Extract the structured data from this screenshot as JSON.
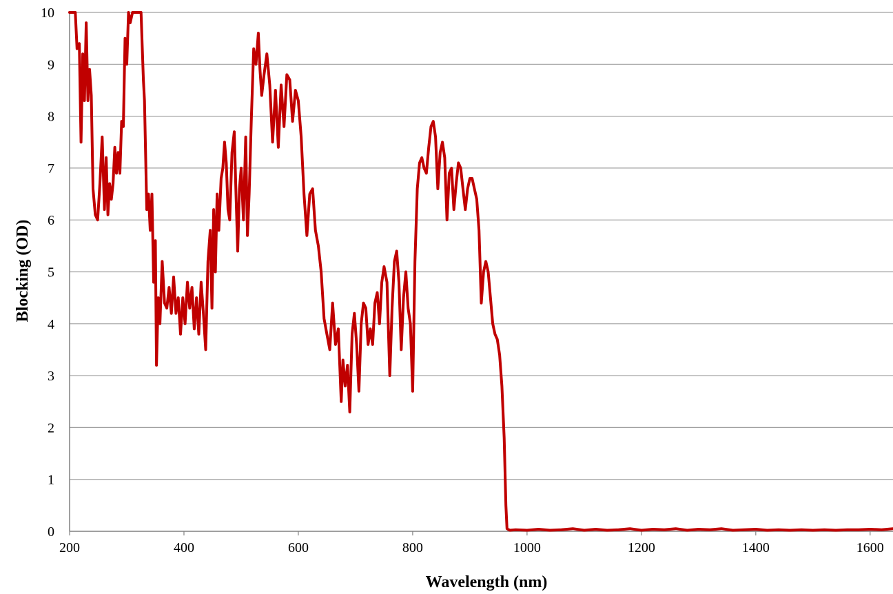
{
  "chart_data": {
    "type": "line",
    "title": "",
    "xlabel": "Wavelength (nm)",
    "ylabel": "Blocking (OD)",
    "xlim": [
      200,
      1640
    ],
    "ylim": [
      0,
      10
    ],
    "x_ticks": [
      "200",
      "400",
      "600",
      "800",
      "1000",
      "1200",
      "1400",
      "1600"
    ],
    "y_ticks": [
      "0",
      "1",
      "2",
      "3",
      "4",
      "5",
      "6",
      "7",
      "8",
      "9",
      "10"
    ],
    "grid": {
      "horizontal": true,
      "vertical": false
    },
    "legend": "none",
    "colors": {
      "series": "#c00000",
      "grid": "#a0a0a0",
      "axis": "#808080"
    },
    "series": [
      {
        "values_xy": [
          [
            200,
            10
          ],
          [
            210,
            10
          ],
          [
            213,
            9.3
          ],
          [
            217,
            9.4
          ],
          [
            220,
            7.5
          ],
          [
            223,
            9.2
          ],
          [
            226,
            8.3
          ],
          [
            229,
            9.8
          ],
          [
            232,
            8.3
          ],
          [
            235,
            8.9
          ],
          [
            238,
            8.4
          ],
          [
            241,
            6.6
          ],
          [
            245,
            6.1
          ],
          [
            249,
            6.0
          ],
          [
            253,
            6.7
          ],
          [
            257,
            7.6
          ],
          [
            261,
            6.2
          ],
          [
            264,
            7.2
          ],
          [
            267,
            6.1
          ],
          [
            270,
            6.7
          ],
          [
            273,
            6.4
          ],
          [
            276,
            6.7
          ],
          [
            279,
            7.4
          ],
          [
            282,
            6.9
          ],
          [
            285,
            7.3
          ],
          [
            288,
            6.9
          ],
          [
            291,
            7.9
          ],
          [
            294,
            7.8
          ],
          [
            297,
            9.5
          ],
          [
            300,
            9.0
          ],
          [
            303,
            10
          ],
          [
            306,
            9.8
          ],
          [
            310,
            10
          ],
          [
            325,
            10
          ],
          [
            329,
            8.7
          ],
          [
            331,
            8.3
          ],
          [
            335,
            6.2
          ],
          [
            338,
            6.5
          ],
          [
            341,
            5.8
          ],
          [
            344,
            6.5
          ],
          [
            347,
            4.8
          ],
          [
            350,
            5.6
          ],
          [
            352,
            3.2
          ],
          [
            355,
            4.5
          ],
          [
            358,
            4.0
          ],
          [
            362,
            5.2
          ],
          [
            366,
            4.4
          ],
          [
            370,
            4.3
          ],
          [
            374,
            4.7
          ],
          [
            378,
            4.2
          ],
          [
            382,
            4.9
          ],
          [
            386,
            4.2
          ],
          [
            390,
            4.5
          ],
          [
            394,
            3.8
          ],
          [
            398,
            4.5
          ],
          [
            402,
            4.0
          ],
          [
            406,
            4.8
          ],
          [
            410,
            4.3
          ],
          [
            414,
            4.7
          ],
          [
            418,
            3.9
          ],
          [
            422,
            4.5
          ],
          [
            426,
            3.8
          ],
          [
            430,
            4.8
          ],
          [
            434,
            4.2
          ],
          [
            438,
            3.5
          ],
          [
            442,
            5.2
          ],
          [
            446,
            5.8
          ],
          [
            449,
            4.3
          ],
          [
            452,
            6.2
          ],
          [
            455,
            5.0
          ],
          [
            458,
            6.5
          ],
          [
            461,
            5.8
          ],
          [
            465,
            6.8
          ],
          [
            468,
            7.0
          ],
          [
            471,
            7.5
          ],
          [
            474,
            7.1
          ],
          [
            477,
            6.2
          ],
          [
            480,
            6.0
          ],
          [
            484,
            7.3
          ],
          [
            488,
            7.7
          ],
          [
            491,
            6.5
          ],
          [
            494,
            5.4
          ],
          [
            497,
            6.6
          ],
          [
            500,
            7.0
          ],
          [
            504,
            6.0
          ],
          [
            508,
            7.6
          ],
          [
            511,
            5.7
          ],
          [
            514,
            6.5
          ],
          [
            518,
            8.0
          ],
          [
            522,
            9.3
          ],
          [
            526,
            9.0
          ],
          [
            530,
            9.6
          ],
          [
            533,
            8.9
          ],
          [
            536,
            8.4
          ],
          [
            540,
            8.8
          ],
          [
            545,
            9.2
          ],
          [
            550,
            8.6
          ],
          [
            555,
            7.5
          ],
          [
            560,
            8.5
          ],
          [
            565,
            7.4
          ],
          [
            570,
            8.6
          ],
          [
            575,
            7.8
          ],
          [
            580,
            8.8
          ],
          [
            585,
            8.7
          ],
          [
            590,
            7.9
          ],
          [
            595,
            8.5
          ],
          [
            600,
            8.3
          ],
          [
            605,
            7.6
          ],
          [
            610,
            6.5
          ],
          [
            615,
            5.7
          ],
          [
            620,
            6.5
          ],
          [
            625,
            6.6
          ],
          [
            630,
            5.8
          ],
          [
            635,
            5.5
          ],
          [
            640,
            5.0
          ],
          [
            645,
            4.1
          ],
          [
            650,
            3.8
          ],
          [
            655,
            3.5
          ],
          [
            660,
            4.4
          ],
          [
            665,
            3.6
          ],
          [
            670,
            3.9
          ],
          [
            675,
            2.5
          ],
          [
            678,
            3.3
          ],
          [
            682,
            2.8
          ],
          [
            686,
            3.2
          ],
          [
            690,
            2.3
          ],
          [
            694,
            3.8
          ],
          [
            698,
            4.2
          ],
          [
            702,
            3.6
          ],
          [
            706,
            2.7
          ],
          [
            710,
            4.0
          ],
          [
            714,
            4.4
          ],
          [
            718,
            4.3
          ],
          [
            722,
            3.6
          ],
          [
            726,
            3.9
          ],
          [
            730,
            3.6
          ],
          [
            734,
            4.4
          ],
          [
            738,
            4.6
          ],
          [
            742,
            4.0
          ],
          [
            746,
            4.8
          ],
          [
            750,
            5.1
          ],
          [
            755,
            4.8
          ],
          [
            760,
            3.0
          ],
          [
            764,
            4.3
          ],
          [
            768,
            5.2
          ],
          [
            772,
            5.4
          ],
          [
            776,
            4.8
          ],
          [
            780,
            3.5
          ],
          [
            784,
            4.5
          ],
          [
            788,
            5.0
          ],
          [
            792,
            4.3
          ],
          [
            796,
            4.0
          ],
          [
            800,
            2.7
          ],
          [
            804,
            5.2
          ],
          [
            808,
            6.6
          ],
          [
            812,
            7.1
          ],
          [
            816,
            7.2
          ],
          [
            820,
            7.0
          ],
          [
            824,
            6.9
          ],
          [
            828,
            7.4
          ],
          [
            832,
            7.8
          ],
          [
            836,
            7.9
          ],
          [
            840,
            7.6
          ],
          [
            844,
            6.6
          ],
          [
            848,
            7.3
          ],
          [
            852,
            7.5
          ],
          [
            856,
            7.2
          ],
          [
            860,
            6.0
          ],
          [
            864,
            6.9
          ],
          [
            868,
            7.0
          ],
          [
            872,
            6.2
          ],
          [
            876,
            6.7
          ],
          [
            880,
            7.1
          ],
          [
            884,
            7.0
          ],
          [
            888,
            6.6
          ],
          [
            892,
            6.2
          ],
          [
            896,
            6.6
          ],
          [
            900,
            6.8
          ],
          [
            904,
            6.8
          ],
          [
            908,
            6.6
          ],
          [
            912,
            6.4
          ],
          [
            916,
            5.8
          ],
          [
            920,
            4.4
          ],
          [
            924,
            5.0
          ],
          [
            928,
            5.2
          ],
          [
            932,
            5.0
          ],
          [
            936,
            4.5
          ],
          [
            940,
            4.0
          ],
          [
            944,
            3.8
          ],
          [
            948,
            3.7
          ],
          [
            952,
            3.4
          ],
          [
            956,
            2.8
          ],
          [
            960,
            1.8
          ],
          [
            963,
            0.5
          ],
          [
            965,
            0.05
          ],
          [
            970,
            0.02
          ],
          [
            980,
            0.03
          ],
          [
            1000,
            0.02
          ],
          [
            1020,
            0.04
          ],
          [
            1040,
            0.02
          ],
          [
            1060,
            0.03
          ],
          [
            1080,
            0.05
          ],
          [
            1100,
            0.02
          ],
          [
            1120,
            0.04
          ],
          [
            1140,
            0.02
          ],
          [
            1160,
            0.03
          ],
          [
            1180,
            0.05
          ],
          [
            1200,
            0.02
          ],
          [
            1220,
            0.04
          ],
          [
            1240,
            0.03
          ],
          [
            1260,
            0.05
          ],
          [
            1280,
            0.02
          ],
          [
            1300,
            0.04
          ],
          [
            1320,
            0.03
          ],
          [
            1340,
            0.05
          ],
          [
            1360,
            0.02
          ],
          [
            1380,
            0.03
          ],
          [
            1400,
            0.04
          ],
          [
            1420,
            0.02
          ],
          [
            1440,
            0.03
          ],
          [
            1460,
            0.02
          ],
          [
            1480,
            0.03
          ],
          [
            1500,
            0.02
          ],
          [
            1520,
            0.03
          ],
          [
            1540,
            0.02
          ],
          [
            1560,
            0.03
          ],
          [
            1580,
            0.03
          ],
          [
            1600,
            0.04
          ],
          [
            1620,
            0.03
          ],
          [
            1640,
            0.05
          ]
        ]
      }
    ]
  }
}
